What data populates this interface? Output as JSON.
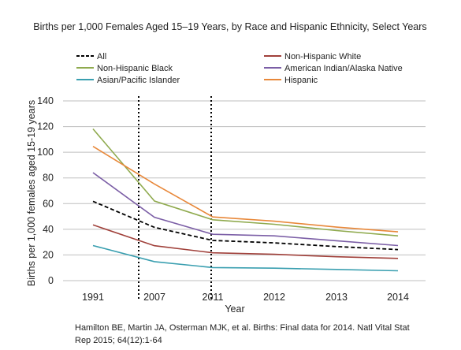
{
  "chart_data": {
    "type": "line",
    "title": "Births per 1,000 Females Aged 15–19 Years, by Race and Hispanic Ethnicity, Select Years",
    "xlabel": "Year",
    "ylabel": "Births per 1,000 females aged 15-19 years",
    "categories": [
      "1991",
      "2007",
      "2011",
      "2012",
      "2013",
      "2014"
    ],
    "ylim": [
      0,
      140
    ],
    "yticks": [
      0,
      20,
      40,
      60,
      80,
      100,
      120,
      140
    ],
    "grid": true,
    "legend_position": "top",
    "series": [
      {
        "name": "All",
        "color": "#000000",
        "dashed": true,
        "values": [
          61.8,
          41.5,
          31.3,
          29.4,
          26.5,
          24.2
        ]
      },
      {
        "name": "Non-Hispanic White",
        "color": "#A0403A",
        "dashed": false,
        "values": [
          43.4,
          27.2,
          21.7,
          20.5,
          18.6,
          17.3
        ]
      },
      {
        "name": "Non-Hispanic Black",
        "color": "#8FAA4E",
        "dashed": false,
        "values": [
          118.2,
          62.0,
          47.4,
          43.9,
          39.0,
          34.9
        ]
      },
      {
        "name": "American Indian/Alaska Native",
        "color": "#7B5EA6",
        "dashed": false,
        "values": [
          84.1,
          49.3,
          36.1,
          34.9,
          31.1,
          27.3
        ]
      },
      {
        "name": "Asian/Pacific Islander",
        "color": "#3A9FB0",
        "dashed": false,
        "values": [
          27.3,
          14.8,
          10.2,
          9.7,
          8.7,
          7.7
        ]
      },
      {
        "name": "Hispanic",
        "color": "#E8883A",
        "dashed": false,
        "values": [
          104.6,
          75.3,
          49.6,
          46.3,
          41.7,
          38.0
        ]
      }
    ],
    "vertical_markers": [
      "between 1991 and 2007",
      "2011"
    ]
  },
  "source": "Hamilton BE, Martin JA, Osterman MJK, et al. Births: Final data for 2014. Natl Vital Stat Rep 2015; 64(12):1-64"
}
